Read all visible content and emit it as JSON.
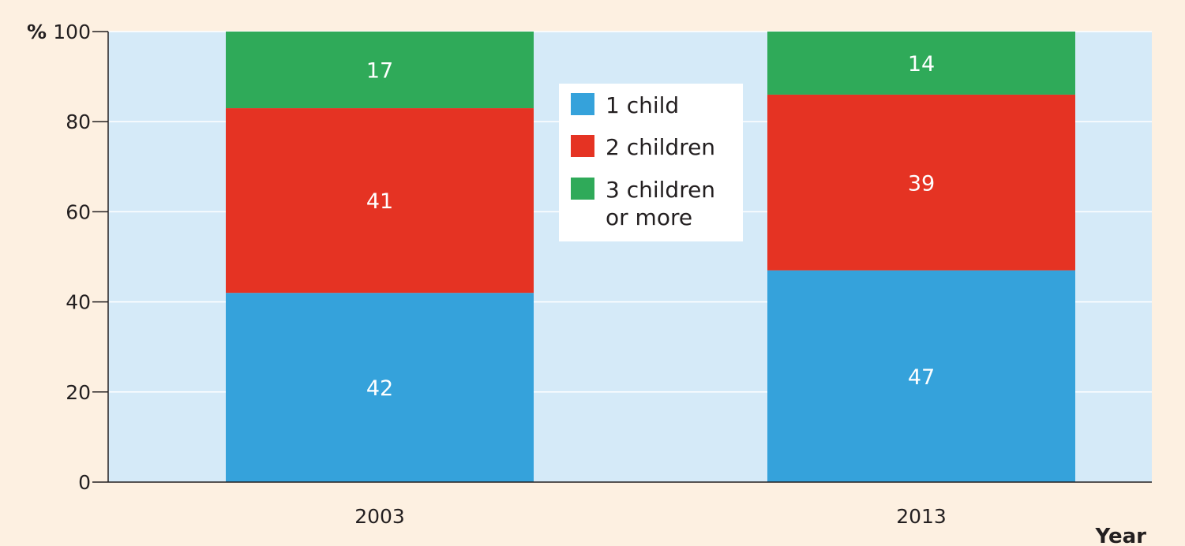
{
  "chart_data": {
    "type": "bar",
    "stacked": true,
    "categories": [
      "2003",
      "2013"
    ],
    "series": [
      {
        "name": "1 child",
        "values": [
          42,
          47
        ],
        "color": "#35a2db"
      },
      {
        "name": "2 children",
        "values": [
          41,
          39
        ],
        "color": "#e53323"
      },
      {
        "name": "3 children\nor more",
        "values": [
          17,
          14
        ],
        "color": "#2faa59"
      }
    ],
    "y_unit": "%",
    "ylim": [
      0,
      100
    ],
    "yticks": [
      0,
      20,
      40,
      60,
      80,
      100
    ],
    "xlabel": "Year",
    "ylabel": "",
    "grid": true,
    "legend_position": "top-center",
    "plot_background": "#d5eaf8",
    "page_background": "#fdf0e1"
  }
}
